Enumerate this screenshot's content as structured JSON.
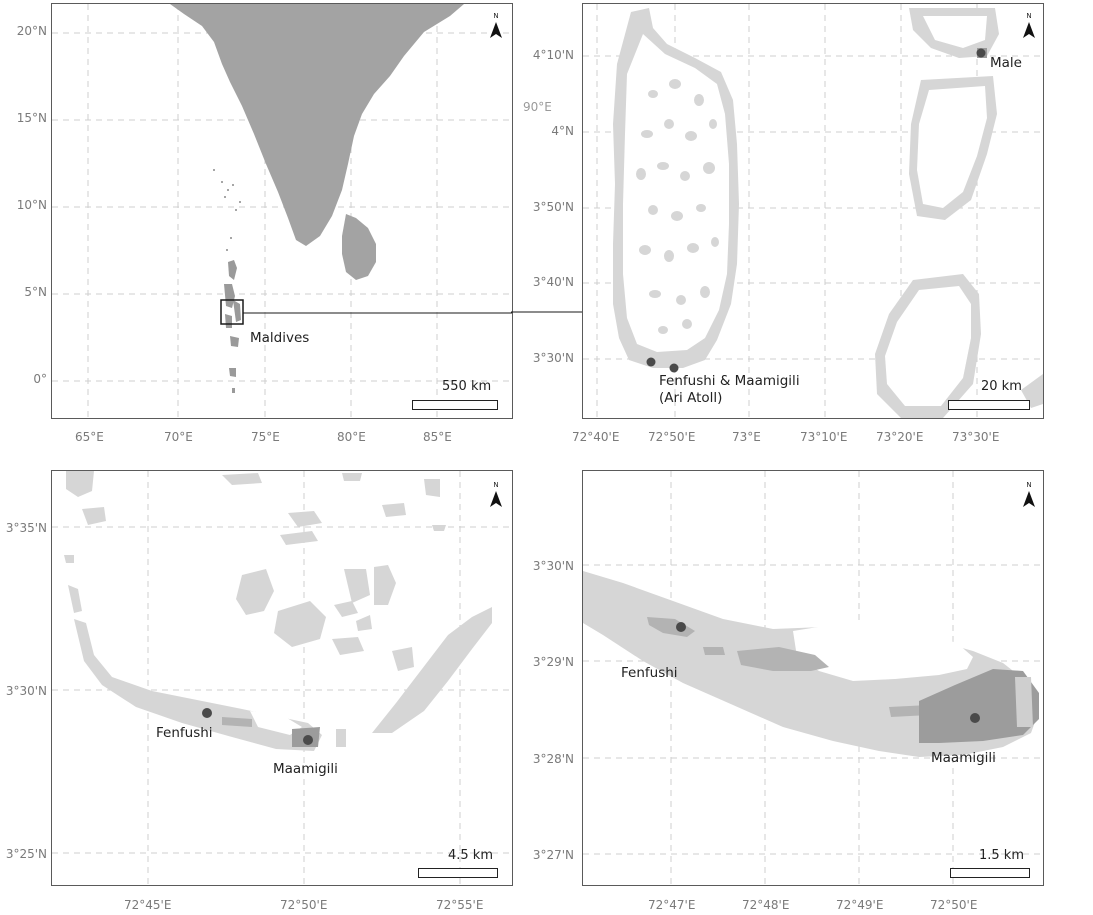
{
  "panels": {
    "overview": {
      "y_ticks": [
        "20°N",
        "15°N",
        "10°N",
        "5°N",
        "0°"
      ],
      "x_ticks": [
        "65°E",
        "70°E",
        "75°E",
        "80°E",
        "85°E"
      ],
      "place_label": "Maldives",
      "scale_label": "550 km",
      "north": "N"
    },
    "atoll": {
      "y_ticks": [
        "4°10'N",
        "4°N",
        "3°50'N",
        "3°40'N",
        "3°30'N"
      ],
      "x_ticks": [
        "72°40'E",
        "72°50'E",
        "73°E",
        "73°10'E",
        "73°20'E",
        "73°30'E"
      ],
      "extra_label": "90°E",
      "city_label": "Male",
      "site_label_line1": "Fenfushi & Maamigili",
      "site_label_line2": "(Ari Atoll)",
      "scale_label": "20 km",
      "north": "N"
    },
    "south_ari": {
      "y_ticks": [
        "3°35'N",
        "3°30'N",
        "3°25'N"
      ],
      "x_ticks": [
        "72°45'E",
        "72°50'E",
        "72°55'E"
      ],
      "label_fenfushi": "Fenfushi",
      "label_maamigili": "Maamigili",
      "scale_label": "4.5 km",
      "north": "N"
    },
    "detail": {
      "y_ticks": [
        "3°30'N",
        "3°29'N",
        "3°28'N",
        "3°27'N"
      ],
      "x_ticks": [
        "72°47'E",
        "72°48'E",
        "72°49'E",
        "72°50'E"
      ],
      "label_fenfushi": "Fenfushi",
      "label_maamigili": "Maamigili",
      "scale_label": "1.5 km",
      "north": "N"
    }
  },
  "colors": {
    "land": "#a3a3a3",
    "reef": "#d6d6d6",
    "site": "#4a4a4a",
    "frame": "#5a5a5a",
    "grid": "#cfcfcf"
  }
}
